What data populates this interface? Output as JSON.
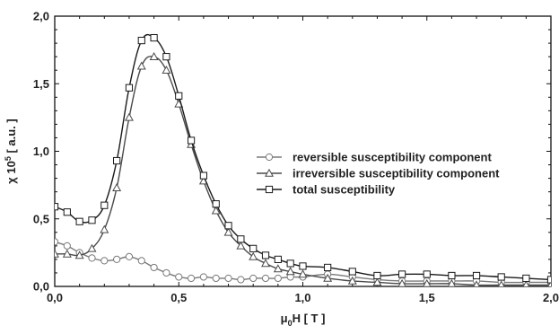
{
  "chart_data": {
    "type": "line",
    "title": "",
    "xlabel": {
      "text": "μ",
      "sub": "0",
      "rest": "H [ T ]"
    },
    "ylabel": {
      "text": "χ 10",
      "sup": "5",
      "rest": " [ a.u. ]"
    },
    "xlim": [
      0,
      2.0
    ],
    "ylim": [
      0,
      2.0
    ],
    "xticks": [
      "0,0",
      "0,5",
      "1,0",
      "1,5",
      "2,0"
    ],
    "xtick_values": [
      0,
      0.5,
      1.0,
      1.5,
      2.0
    ],
    "yticks": [
      "0,0",
      "0,5",
      "1,0",
      "1,5",
      "2,0"
    ],
    "ytick_values": [
      0,
      0.5,
      1.0,
      1.5,
      2.0
    ],
    "grid": false,
    "legend_position": "center-right",
    "series": [
      {
        "name": "reversible susceptibility component",
        "marker": "circle",
        "color": "#7a7a7a",
        "x": [
          0.0,
          0.05,
          0.1,
          0.15,
          0.2,
          0.25,
          0.3,
          0.35,
          0.4,
          0.45,
          0.5,
          0.55,
          0.6,
          0.65,
          0.7,
          0.75,
          0.8,
          0.85,
          0.9,
          0.95,
          1.0,
          1.1,
          1.2,
          1.3,
          1.4,
          1.5,
          1.6,
          1.7,
          1.8,
          1.9,
          2.0
        ],
        "y": [
          0.33,
          0.3,
          0.25,
          0.21,
          0.19,
          0.2,
          0.22,
          0.19,
          0.14,
          0.1,
          0.07,
          0.06,
          0.07,
          0.06,
          0.06,
          0.05,
          0.06,
          0.06,
          0.06,
          0.07,
          0.07,
          0.09,
          0.07,
          0.05,
          0.04,
          0.04,
          0.04,
          0.04,
          0.03,
          0.03,
          0.03
        ]
      },
      {
        "name": "irreversible susceptibility component",
        "marker": "triangle",
        "color": "#4a4a4a",
        "x": [
          0.0,
          0.05,
          0.1,
          0.15,
          0.2,
          0.25,
          0.3,
          0.35,
          0.4,
          0.45,
          0.5,
          0.55,
          0.6,
          0.65,
          0.7,
          0.75,
          0.8,
          0.85,
          0.9,
          0.95,
          1.0,
          1.1,
          1.2,
          1.3,
          1.4,
          1.5,
          1.6,
          1.7,
          1.8,
          1.9,
          2.0
        ],
        "y": [
          0.24,
          0.24,
          0.23,
          0.28,
          0.42,
          0.73,
          1.25,
          1.63,
          1.7,
          1.6,
          1.35,
          1.05,
          0.78,
          0.56,
          0.4,
          0.3,
          0.22,
          0.17,
          0.13,
          0.11,
          0.09,
          0.06,
          0.04,
          0.03,
          0.02,
          0.02,
          0.02,
          0.01,
          0.01,
          0.01,
          0.01
        ]
      },
      {
        "name": "total susceptibility",
        "marker": "square",
        "color": "#1a1a1a",
        "x": [
          0.0,
          0.05,
          0.1,
          0.15,
          0.2,
          0.25,
          0.3,
          0.35,
          0.4,
          0.45,
          0.5,
          0.55,
          0.6,
          0.65,
          0.7,
          0.75,
          0.8,
          0.85,
          0.9,
          0.95,
          1.0,
          1.1,
          1.2,
          1.3,
          1.4,
          1.5,
          1.6,
          1.7,
          1.8,
          1.9,
          2.0
        ],
        "y": [
          0.59,
          0.55,
          0.48,
          0.49,
          0.6,
          0.93,
          1.47,
          1.82,
          1.84,
          1.7,
          1.41,
          1.08,
          0.82,
          0.61,
          0.45,
          0.35,
          0.28,
          0.23,
          0.2,
          0.17,
          0.15,
          0.14,
          0.11,
          0.08,
          0.09,
          0.09,
          0.08,
          0.08,
          0.07,
          0.06,
          0.05
        ]
      }
    ]
  }
}
